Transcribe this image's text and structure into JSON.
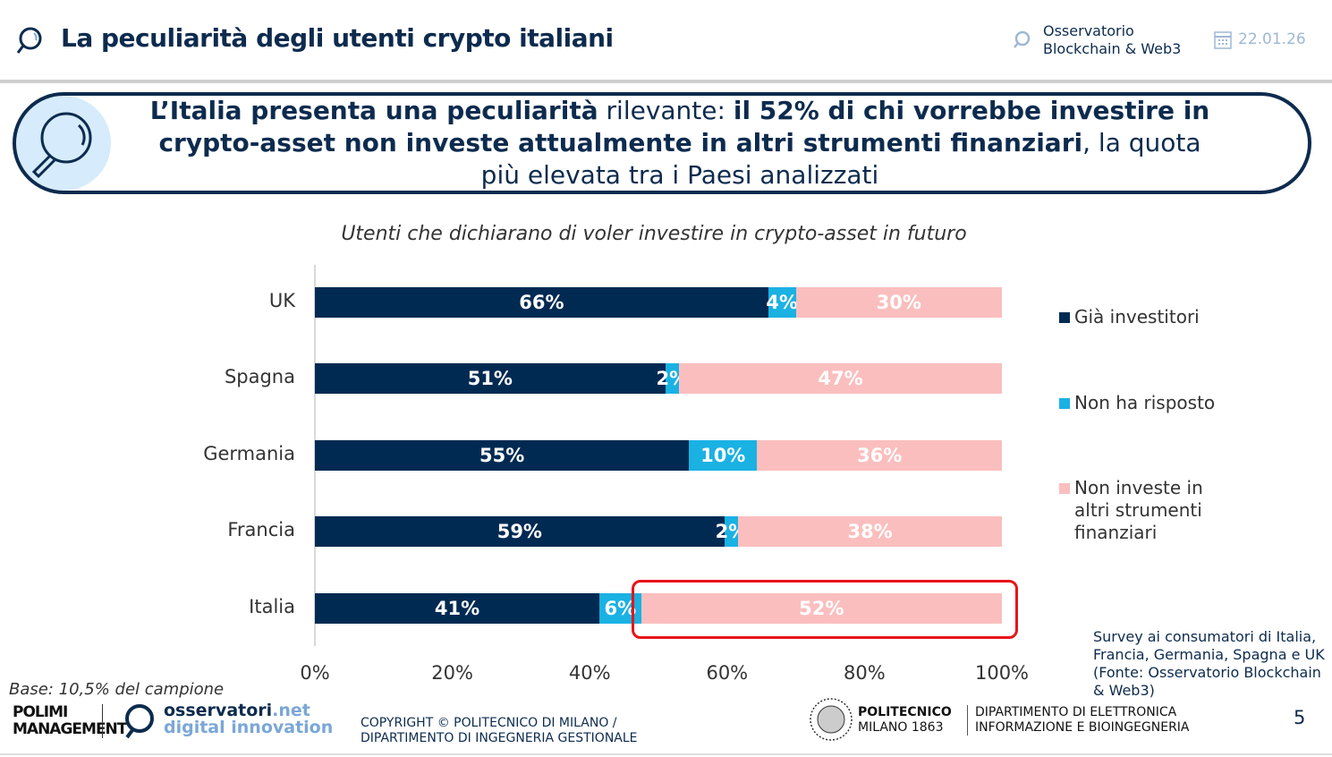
{
  "header": {
    "title": "La peculiarità degli utenti crypto italiani",
    "observatory": [
      "Osservatorio",
      "Blockchain & Web3"
    ],
    "date": "22.01.26"
  },
  "callout": {
    "bold1": "L’Italia presenta una peculiarità",
    "normal1": " rilevante: ",
    "bold2": "il 52% di chi vorrebbe investire in crypto-asset non investe attualmente in altri strumenti finanziari",
    "normal2": ", la quota più elevata tra i Paesi analizzati"
  },
  "chart_data": {
    "type": "bar",
    "orientation": "horizontal",
    "stacked": true,
    "title": "Utenti che dichiarano di voler investire in crypto-asset in futuro",
    "categories": [
      "UK",
      "Spagna",
      "Germania",
      "Francia",
      "Italia"
    ],
    "series": [
      {
        "name": "Già investitori",
        "color": "#002a52",
        "values": [
          66,
          51,
          55,
          59,
          41
        ]
      },
      {
        "name": "Non ha risposto",
        "color": "#1ab1e3",
        "values": [
          4,
          2,
          10,
          2,
          6
        ]
      },
      {
        "name": "Non investe in altri strumenti finanziari",
        "color": "#fbbebe",
        "values": [
          30,
          47,
          36,
          38,
          52
        ]
      }
    ],
    "xticks": [
      "0%",
      "20%",
      "40%",
      "60%",
      "80%",
      "100%"
    ],
    "xlim": [
      0,
      100
    ],
    "legend": "right",
    "highlight": "Italia – Non investe in altri strumenti finanziari",
    "highlight_color": "#e8141a"
  },
  "legend_labels": [
    "Già investitori",
    "Non ha risposto",
    "Non investe in\naltri strumenti\nfinanziari"
  ],
  "source": "Survey ai consumatori di Italia, Francia, Germania, Spagna e UK (Fonte: Osservatorio Blockchain & Web3)",
  "footer": {
    "base": "Base: 10,5% del campione",
    "polimi": "POLIMI MANAGEMENT",
    "osservatori": "osservatori",
    "osservatori_net": ".net",
    "digital": "digital innovation",
    "copyright": "COPYRIGHT © POLITECNICO DI MILANO / DIPARTIMENTO DI INGEGNERIA GESTIONALE",
    "politecnico": "POLITECNICO",
    "milano": "MILANO 1863",
    "dept1": "DIPARTIMENTO DI ELETTRONICA",
    "dept2": "INFORMAZIONE E BIOINGEGNERIA",
    "page": "5"
  }
}
